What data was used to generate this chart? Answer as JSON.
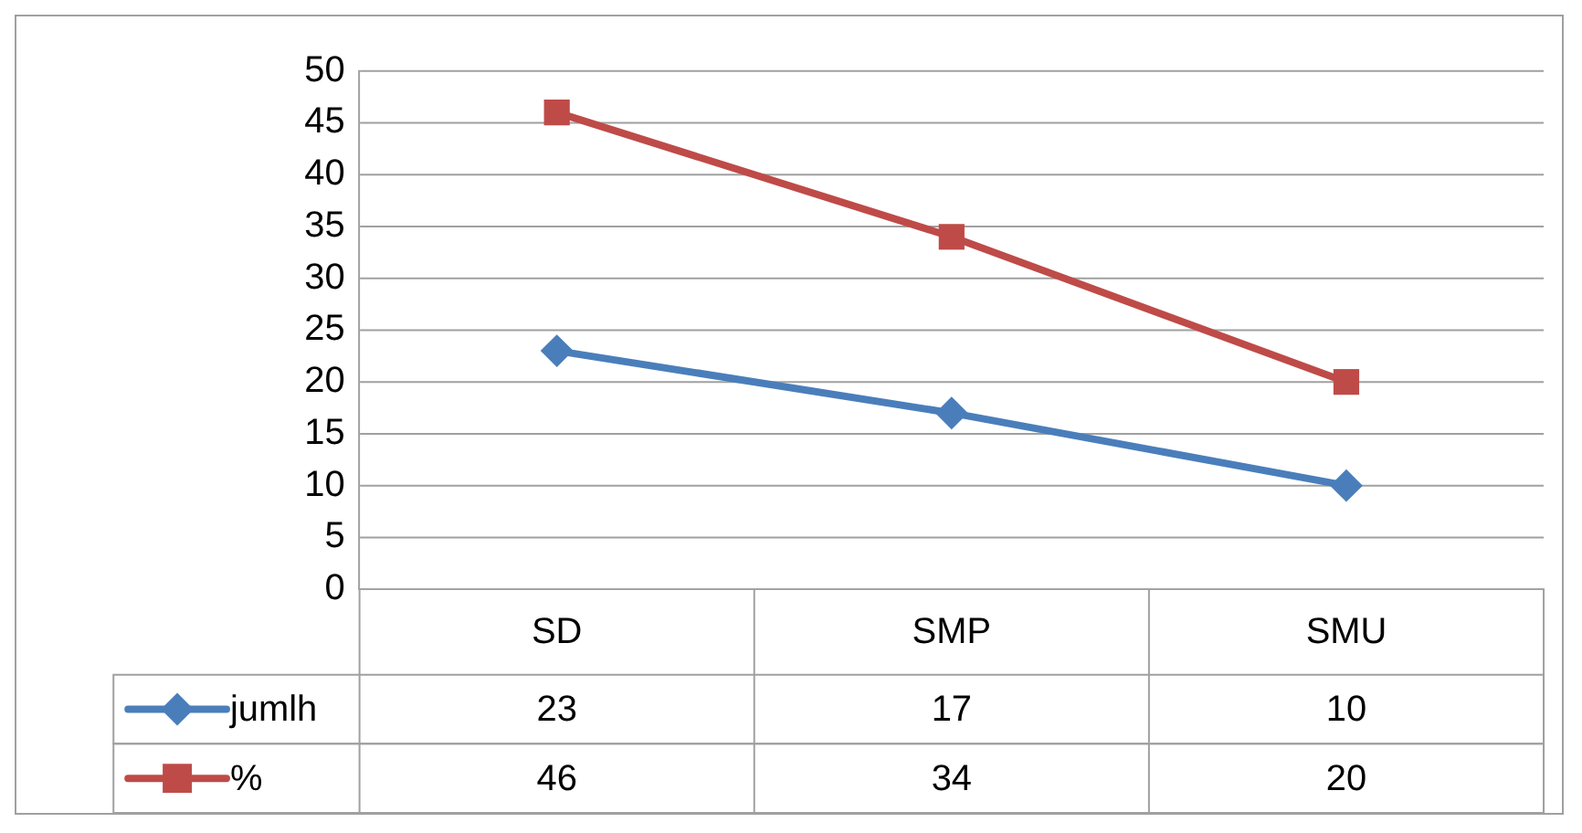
{
  "chart_data": {
    "type": "line",
    "categories": [
      "SD",
      "SMP",
      "SMU"
    ],
    "series": [
      {
        "name": "jumlh",
        "color": "#4a7ebb",
        "marker": "diamond",
        "values": [
          23,
          17,
          10
        ]
      },
      {
        "name": "%",
        "color": "#be4b48",
        "marker": "square",
        "values": [
          46,
          34,
          20
        ]
      }
    ],
    "ylim": [
      0,
      50
    ],
    "yticks": [
      0,
      5,
      10,
      15,
      20,
      25,
      30,
      35,
      40,
      45,
      50
    ],
    "grid": "y",
    "legend": "bottom",
    "data_labels": true
  }
}
